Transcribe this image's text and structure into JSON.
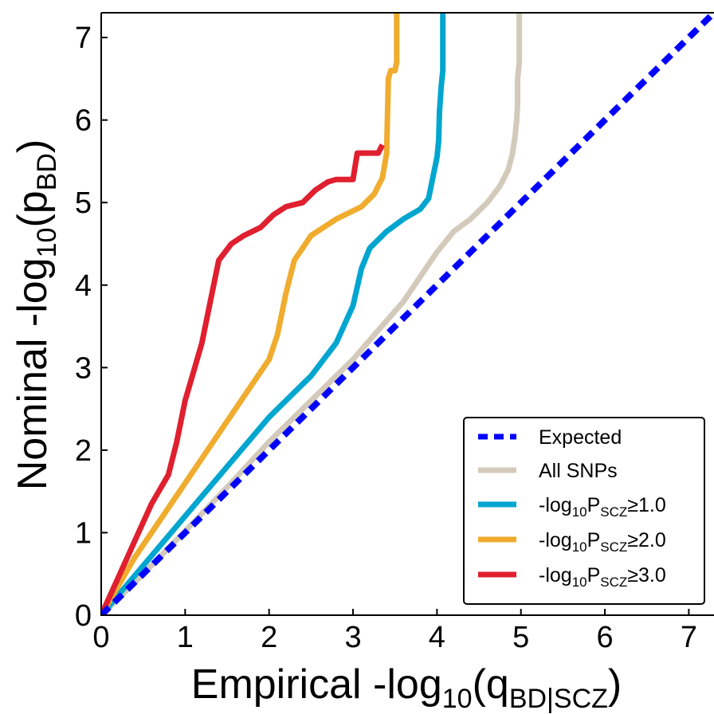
{
  "chart_data": {
    "type": "line",
    "title": "",
    "xlabel": {
      "main": "Empirical -log",
      "sub": "10",
      "tail_open": "(q",
      "sub2": "BD|SCZ",
      "tail_close": ")"
    },
    "ylabel": {
      "main": "Nominal -log",
      "sub": "10",
      "tail_open": "(p",
      "sub2": "BD",
      "tail_close": ")"
    },
    "xlim": [
      0,
      7.3
    ],
    "ylim": [
      0,
      7.3
    ],
    "xticks": [
      0,
      1,
      2,
      3,
      4,
      5,
      6,
      7
    ],
    "yticks": [
      0,
      1,
      2,
      3,
      4,
      5,
      6,
      7
    ],
    "grid": false,
    "legend": {
      "placement": "lower-right",
      "entries": [
        {
          "key": "expected",
          "label": "Expected"
        },
        {
          "key": "all",
          "label": "All SNPs"
        },
        {
          "key": "scz1",
          "label": "-log",
          "sub": "10",
          "label2": "P",
          "sub2": "SCZ",
          "label3": "≥1.0"
        },
        {
          "key": "scz2",
          "label": "-log",
          "sub": "10",
          "label2": "P",
          "sub2": "SCZ",
          "label3": "≥2.0"
        },
        {
          "key": "scz3",
          "label": "-log",
          "sub": "10",
          "label2": "P",
          "sub2": "SCZ",
          "label3": "≥3.0"
        }
      ]
    },
    "series": [
      {
        "key": "expected",
        "color": "#0000ff",
        "dashed": true,
        "points": [
          [
            0,
            0
          ],
          [
            7.3,
            7.3
          ]
        ]
      },
      {
        "key": "all",
        "color": "#d3cabb",
        "points": [
          [
            0,
            0
          ],
          [
            0.5,
            0.5
          ],
          [
            1,
            1.02
          ],
          [
            1.5,
            1.55
          ],
          [
            2,
            2.1
          ],
          [
            2.5,
            2.6
          ],
          [
            3,
            3.1
          ],
          [
            3.3,
            3.45
          ],
          [
            3.6,
            3.8
          ],
          [
            3.8,
            4.1
          ],
          [
            4,
            4.4
          ],
          [
            4.2,
            4.65
          ],
          [
            4.4,
            4.8
          ],
          [
            4.5,
            4.9
          ],
          [
            4.6,
            5.0
          ],
          [
            4.75,
            5.2
          ],
          [
            4.85,
            5.4
          ],
          [
            4.9,
            5.6
          ],
          [
            4.93,
            5.8
          ],
          [
            4.95,
            6.0
          ],
          [
            4.96,
            6.2
          ],
          [
            4.96,
            6.5
          ],
          [
            4.97,
            6.6
          ],
          [
            4.98,
            6.7
          ],
          [
            4.98,
            7.3
          ]
        ]
      },
      {
        "key": "scz1",
        "color": "#00a6cf",
        "points": [
          [
            0,
            0
          ],
          [
            0.5,
            0.6
          ],
          [
            1,
            1.2
          ],
          [
            1.5,
            1.8
          ],
          [
            2,
            2.4
          ],
          [
            2.5,
            2.9
          ],
          [
            2.8,
            3.3
          ],
          [
            3,
            3.75
          ],
          [
            3.1,
            4.2
          ],
          [
            3.2,
            4.45
          ],
          [
            3.4,
            4.65
          ],
          [
            3.6,
            4.8
          ],
          [
            3.8,
            4.92
          ],
          [
            3.9,
            5.05
          ],
          [
            3.95,
            5.3
          ],
          [
            4,
            5.55
          ],
          [
            4.02,
            5.75
          ],
          [
            4.03,
            6.1
          ],
          [
            4.05,
            6.4
          ],
          [
            4.07,
            6.6
          ],
          [
            4.07,
            7.3
          ]
        ]
      },
      {
        "key": "scz2",
        "color": "#f0ac2e",
        "points": [
          [
            0,
            0
          ],
          [
            0.4,
            0.7
          ],
          [
            0.8,
            1.3
          ],
          [
            1.2,
            1.9
          ],
          [
            1.6,
            2.5
          ],
          [
            2,
            3.1
          ],
          [
            2.1,
            3.4
          ],
          [
            2.2,
            3.9
          ],
          [
            2.3,
            4.3
          ],
          [
            2.5,
            4.6
          ],
          [
            2.8,
            4.8
          ],
          [
            3.1,
            4.95
          ],
          [
            3.25,
            5.1
          ],
          [
            3.35,
            5.3
          ],
          [
            3.4,
            5.6
          ],
          [
            3.42,
            6.5
          ],
          [
            3.45,
            6.6
          ],
          [
            3.5,
            6.6
          ],
          [
            3.52,
            6.7
          ],
          [
            3.52,
            7.3
          ]
        ]
      },
      {
        "key": "scz3",
        "color": "#e01f2f",
        "points": [
          [
            0,
            0
          ],
          [
            0.2,
            0.45
          ],
          [
            0.4,
            0.9
          ],
          [
            0.6,
            1.35
          ],
          [
            0.8,
            1.7
          ],
          [
            0.9,
            2.1
          ],
          [
            1,
            2.6
          ],
          [
            1.1,
            2.95
          ],
          [
            1.2,
            3.3
          ],
          [
            1.3,
            3.8
          ],
          [
            1.4,
            4.3
          ],
          [
            1.55,
            4.5
          ],
          [
            1.7,
            4.6
          ],
          [
            1.9,
            4.7
          ],
          [
            2.05,
            4.85
          ],
          [
            2.2,
            4.95
          ],
          [
            2.4,
            5.0
          ],
          [
            2.55,
            5.15
          ],
          [
            2.7,
            5.25
          ],
          [
            2.8,
            5.28
          ],
          [
            3.0,
            5.28
          ],
          [
            3.05,
            5.6
          ],
          [
            3.3,
            5.6
          ],
          [
            3.35,
            5.7
          ]
        ]
      }
    ]
  }
}
